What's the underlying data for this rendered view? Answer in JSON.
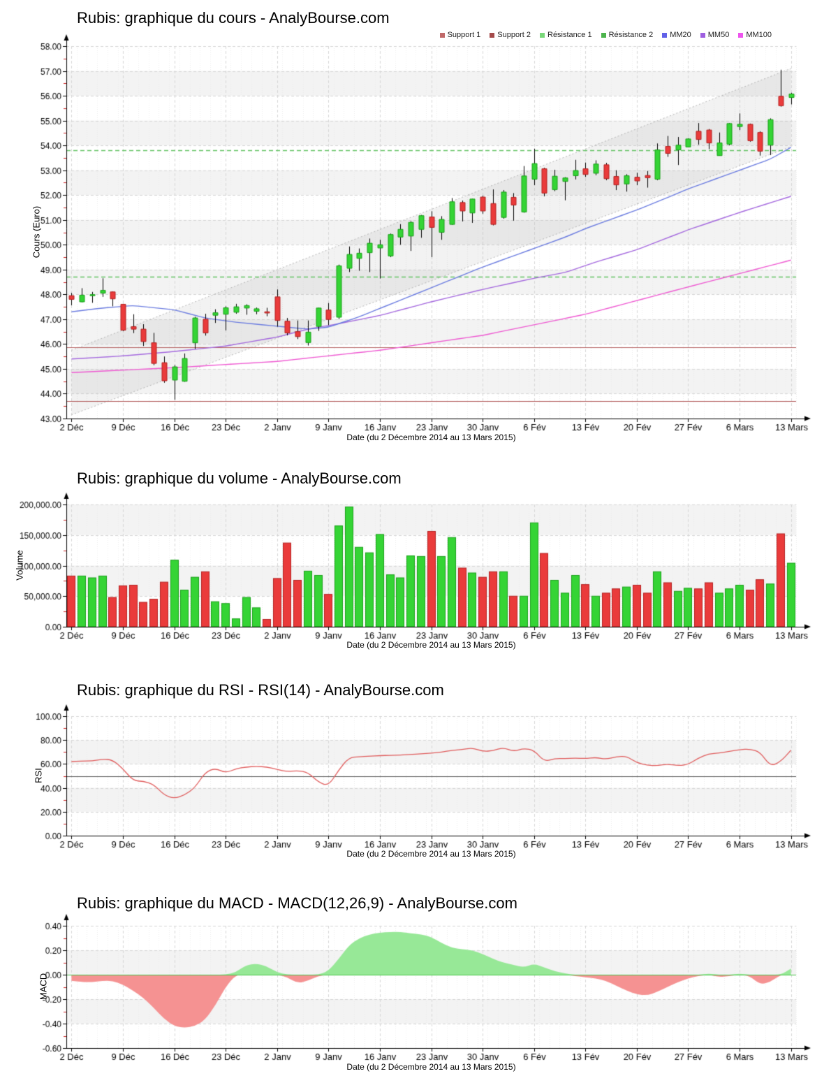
{
  "xlabel": "Date (du 2 Décembre 2014 au 13 Mars 2015)",
  "xticks": {
    "labels": [
      "2 Déc",
      "9 Déc",
      "16 Déc",
      "23 Déc",
      "2 Janv",
      "9 Janv",
      "16 Janv",
      "23 Janv",
      "30 Janv",
      "6 Fév",
      "13 Fév",
      "20 Fév",
      "27 Fév",
      "6 Mars",
      "13 Mars"
    ],
    "days": [
      0,
      5,
      10,
      15,
      20,
      25,
      30,
      35,
      40,
      45,
      50,
      55,
      60,
      65,
      70
    ]
  },
  "legend": [
    {
      "label": "Support 1",
      "color": "#c06969"
    },
    {
      "label": "Support 2",
      "color": "#a44a4a"
    },
    {
      "label": "Résistance 1",
      "color": "#79d879"
    },
    {
      "label": "Résistance 2",
      "color": "#4db44d"
    },
    {
      "label": "MM20",
      "color": "#6161e8"
    },
    {
      "label": "MM50",
      "color": "#9e5fe0"
    },
    {
      "label": "MM100",
      "color": "#ee55ee"
    }
  ],
  "colors": {
    "candle_up": "#35d435",
    "candle_up_border": "#18a018",
    "candle_down": "#ea3b3b",
    "candle_down_border": "#b32020",
    "wick": "#000000",
    "mm20": "#6b7ce0",
    "mm50": "#a468de",
    "mm100": "#ef59d2",
    "support": "#b35d5d",
    "resistance": "#64c364",
    "rsi_line": "#e05c5c",
    "rsi_mid": "#555555",
    "macd_pos": "#97e897",
    "macd_neg": "#f59292",
    "macd_zero": "#4bc44b",
    "band": "#f3f3f3",
    "grid": "#d6d6d6",
    "daygrid": "#ececec",
    "channel_fill": "rgba(150,150,150,0.12)",
    "channel_line": "#b2b2b2",
    "axis": "#000000",
    "minor_tick": "#cc2222"
  },
  "chart_data": [
    {
      "type": "candlestick",
      "title": "Rubis: graphique du cours - AnalyBourse.com",
      "ylabel": "Cours (Euro)",
      "ylim": [
        43,
        58
      ],
      "yticks": [
        43,
        44,
        45,
        46,
        47,
        48,
        49,
        50,
        51,
        52,
        53,
        54,
        55,
        56,
        57,
        58
      ],
      "candles": {
        "open": [
          47.95,
          47.7,
          47.95,
          48.05,
          48.1,
          47.6,
          46.7,
          46.6,
          46.05,
          45.25,
          44.55,
          44.5,
          46.05,
          47.0,
          47.16,
          47.2,
          47.28,
          47.45,
          47.32,
          47.3,
          47.9,
          46.92,
          46.5,
          46.06,
          46.71,
          47.37,
          47.08,
          49.05,
          49.45,
          49.68,
          49.87,
          49.55,
          50.31,
          50.35,
          50.62,
          51.12,
          50.5,
          50.82,
          51.7,
          51.28,
          51.92,
          51.66,
          51.1,
          51.91,
          51.32,
          52.64,
          53.06,
          52.22,
          52.55,
          52.78,
          53.06,
          52.88,
          53.22,
          52.75,
          52.45,
          52.72,
          52.79,
          52.64,
          53.96,
          53.82,
          53.94,
          54.57,
          54.62,
          53.59,
          54.05,
          54.76,
          54.85,
          54.52,
          54.01,
          55.98,
          55.93
        ],
        "high": [
          48.06,
          48.25,
          48.1,
          48.65,
          48.12,
          47.62,
          47.2,
          46.8,
          46.45,
          45.5,
          45.15,
          45.62,
          47.1,
          47.22,
          47.4,
          47.52,
          47.62,
          47.6,
          47.47,
          47.46,
          48.2,
          47.05,
          46.95,
          46.95,
          47.46,
          47.65,
          49.2,
          49.93,
          49.85,
          50.25,
          50.2,
          50.45,
          50.83,
          50.95,
          51.2,
          51.35,
          51.15,
          51.88,
          51.78,
          51.85,
          51.97,
          52.23,
          52.2,
          52.08,
          53.17,
          53.87,
          53.1,
          53.02,
          52.72,
          53.42,
          53.31,
          53.4,
          53.3,
          53.0,
          52.84,
          52.9,
          52.97,
          54.08,
          54.38,
          54.34,
          54.29,
          54.9,
          54.66,
          54.52,
          54.9,
          55.29,
          54.88,
          54.57,
          55.09,
          57.05,
          56.12
        ],
        "low": [
          47.56,
          47.68,
          47.66,
          47.9,
          47.52,
          46.52,
          46.44,
          45.92,
          45.15,
          44.44,
          43.76,
          44.48,
          45.8,
          46.34,
          46.85,
          46.55,
          47.22,
          47.18,
          47.2,
          47.12,
          46.7,
          46.35,
          46.2,
          45.94,
          46.53,
          46.76,
          47.0,
          48.9,
          48.95,
          48.9,
          48.64,
          49.5,
          50.0,
          49.75,
          50.28,
          49.5,
          50.2,
          50.8,
          50.94,
          50.88,
          51.25,
          50.78,
          51.05,
          50.97,
          51.29,
          52.4,
          51.95,
          52.16,
          51.79,
          52.63,
          52.73,
          52.8,
          52.6,
          52.2,
          52.14,
          52.4,
          52.3,
          52.6,
          53.54,
          53.21,
          53.93,
          54.03,
          53.85,
          53.59,
          54.0,
          54.62,
          54.15,
          53.59,
          53.61,
          55.56,
          55.65
        ],
        "close": [
          47.8,
          47.97,
          47.99,
          48.16,
          47.82,
          46.56,
          46.6,
          46.1,
          45.22,
          44.52,
          45.08,
          45.42,
          47.05,
          46.45,
          47.26,
          47.46,
          47.5,
          47.55,
          47.42,
          47.25,
          46.95,
          46.45,
          46.3,
          46.48,
          47.45,
          46.99,
          49.15,
          49.61,
          49.66,
          50.06,
          50.0,
          50.41,
          50.62,
          50.9,
          51.17,
          50.7,
          51.02,
          51.73,
          51.36,
          51.84,
          51.36,
          50.82,
          52.12,
          51.6,
          52.77,
          53.27,
          52.08,
          52.76,
          52.69,
          52.99,
          52.83,
          53.25,
          52.66,
          52.41,
          52.78,
          52.57,
          52.7,
          53.82,
          53.68,
          54.01,
          54.26,
          54.24,
          54.1,
          54.1,
          54.88,
          54.85,
          54.19,
          53.77,
          55.04,
          55.6,
          56.07
        ]
      },
      "overlays": {
        "support1": 45.86,
        "support2": 43.7,
        "resistance1": 48.72,
        "resistance2": 53.8,
        "mm20": [
          [
            0,
            47.3
          ],
          [
            3,
            47.45
          ],
          [
            6,
            47.55
          ],
          [
            10,
            47.38
          ],
          [
            13,
            47.05
          ],
          [
            16,
            46.88
          ],
          [
            20,
            46.72
          ],
          [
            23,
            46.6
          ],
          [
            25,
            46.68
          ],
          [
            28,
            47.1
          ],
          [
            31,
            47.6
          ],
          [
            34,
            48.1
          ],
          [
            37,
            48.6
          ],
          [
            40,
            49.1
          ],
          [
            43,
            49.55
          ],
          [
            45,
            49.85
          ],
          [
            48,
            50.3
          ],
          [
            50,
            50.65
          ],
          [
            53,
            51.1
          ],
          [
            55,
            51.4
          ],
          [
            58,
            51.9
          ],
          [
            60,
            52.25
          ],
          [
            63,
            52.7
          ],
          [
            65,
            53.0
          ],
          [
            68,
            53.45
          ],
          [
            70,
            53.92
          ]
        ],
        "mm50": [
          [
            0,
            45.4
          ],
          [
            5,
            45.52
          ],
          [
            10,
            45.7
          ],
          [
            15,
            45.92
          ],
          [
            20,
            46.28
          ],
          [
            23,
            46.6
          ],
          [
            26,
            46.82
          ],
          [
            30,
            47.15
          ],
          [
            35,
            47.7
          ],
          [
            40,
            48.2
          ],
          [
            45,
            48.65
          ],
          [
            48,
            48.88
          ],
          [
            51,
            49.3
          ],
          [
            55,
            49.8
          ],
          [
            60,
            50.6
          ],
          [
            65,
            51.3
          ],
          [
            70,
            51.95
          ]
        ],
        "mm100": [
          [
            0,
            44.85
          ],
          [
            10,
            45.05
          ],
          [
            20,
            45.3
          ],
          [
            30,
            45.75
          ],
          [
            40,
            46.35
          ],
          [
            50,
            47.2
          ],
          [
            60,
            48.3
          ],
          [
            70,
            49.38
          ]
        ],
        "channel": {
          "lower": [
            [
              0,
              43.15
            ],
            [
              70,
              53.95
            ]
          ],
          "upper": [
            [
              0,
              45.75
            ],
            [
              70,
              57.1
            ]
          ]
        }
      }
    },
    {
      "type": "bar",
      "title": "Rubis: graphique du volume - AnalyBourse.com",
      "ylabel": "Volume",
      "ylim": [
        0,
        200000
      ],
      "yticks": [
        0,
        50000,
        100000,
        150000,
        200000
      ],
      "values": [
        83000,
        83000,
        80000,
        83000,
        48000,
        67000,
        68000,
        40000,
        45000,
        73000,
        109000,
        60000,
        81000,
        90000,
        41000,
        38000,
        13000,
        48000,
        31000,
        12000,
        79000,
        137000,
        76000,
        91000,
        84000,
        53000,
        165000,
        196000,
        130000,
        121000,
        151000,
        85000,
        80000,
        116000,
        115000,
        156000,
        115000,
        146000,
        96000,
        88000,
        81000,
        90000,
        90000,
        50000,
        50000,
        170000,
        120000,
        76000,
        55000,
        84000,
        69000,
        50000,
        55000,
        62000,
        65000,
        68000,
        55000,
        90000,
        72000,
        58000,
        63000,
        62000,
        72000,
        55000,
        62000,
        68000,
        60000,
        77000,
        70000,
        152000,
        104000
      ]
    },
    {
      "type": "line",
      "title": "Rubis: graphique du RSI - RSI(14) - AnalyBourse.com",
      "ylabel": "RSI",
      "ylim": [
        0,
        100
      ],
      "yticks": [
        0,
        20,
        40,
        60,
        80,
        100
      ],
      "midline": 50,
      "values": [
        62,
        62.5,
        62.5,
        64,
        63.5,
        56,
        46,
        45.5,
        43,
        34,
        31,
        34,
        40,
        53,
        56.5,
        52.5,
        56,
        57.5,
        58,
        57.5,
        55.5,
        53.5,
        54.5,
        53,
        45,
        41.5,
        55,
        65.5,
        66,
        66.5,
        67,
        67.2,
        67.5,
        68,
        68.5,
        69,
        70,
        71.5,
        72,
        73.5,
        70.5,
        71,
        73.8,
        70.5,
        73,
        71.5,
        62,
        64.5,
        64.5,
        65,
        64.5,
        65.5,
        64,
        66,
        66.5,
        61,
        59,
        58.5,
        60,
        58.5,
        59.5,
        65,
        68.5,
        69,
        70.5,
        72,
        72.5,
        70,
        58,
        62,
        71.5
      ]
    },
    {
      "type": "area",
      "title": "Rubis: graphique du MACD - MACD(12,26,9) - AnalyBourse.com",
      "ylabel": "MACD",
      "ylim": [
        -0.6,
        0.4
      ],
      "yticks": [
        -0.6,
        -0.4,
        -0.2,
        0,
        0.2,
        0.4
      ],
      "zeroline": 0,
      "values": [
        -0.05,
        -0.06,
        -0.06,
        -0.05,
        -0.05,
        -0.08,
        -0.13,
        -0.19,
        -0.27,
        -0.36,
        -0.42,
        -0.435,
        -0.42,
        -0.37,
        -0.25,
        -0.1,
        0.02,
        0.08,
        0.09,
        0.07,
        0.02,
        -0.02,
        -0.07,
        -0.05,
        -0.01,
        0.03,
        0.13,
        0.24,
        0.3,
        0.33,
        0.345,
        0.35,
        0.35,
        0.34,
        0.33,
        0.31,
        0.26,
        0.22,
        0.21,
        0.2,
        0.17,
        0.13,
        0.1,
        0.08,
        0.06,
        0.09,
        0.06,
        0.03,
        0.01,
        -0.01,
        -0.02,
        -0.03,
        -0.05,
        -0.09,
        -0.13,
        -0.16,
        -0.17,
        -0.14,
        -0.1,
        -0.06,
        -0.03,
        -0.01,
        0.01,
        -0.02,
        -0.01,
        0.01,
        -0.01,
        -0.08,
        -0.06,
        0.0,
        0.05
      ]
    }
  ]
}
